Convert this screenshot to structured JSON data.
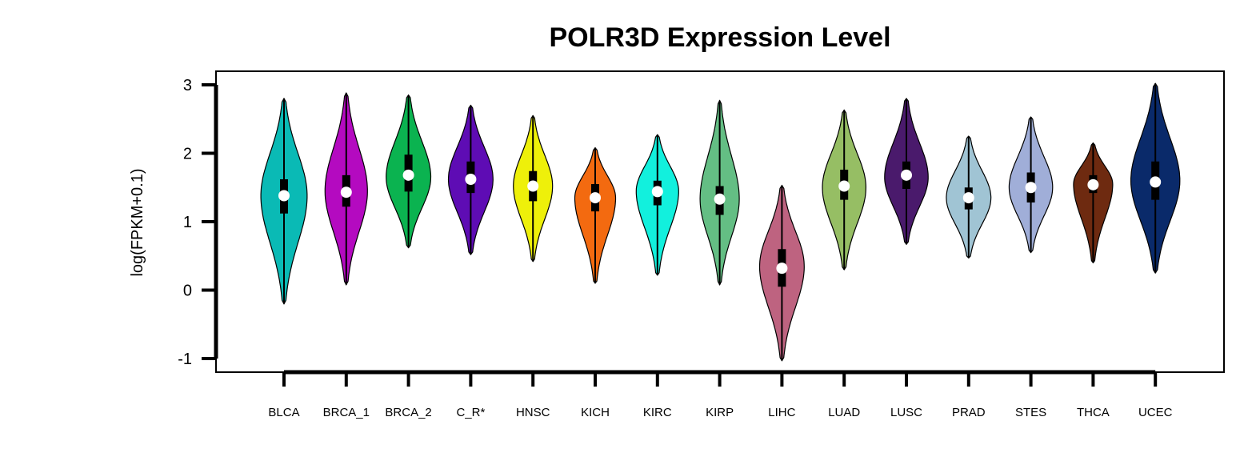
{
  "chart_data": {
    "type": "violin",
    "title": "POLR3D Expression Level",
    "xlabel": "",
    "ylabel": "log(FPKM+0.1)",
    "ylim": [
      -1,
      3
    ],
    "yticks": [
      "-1",
      "0",
      "1",
      "2",
      "3"
    ],
    "grid": false,
    "legend": "none",
    "categories": [
      "BLCA",
      "BRCA_1",
      "BRCA_2",
      "C_R*",
      "HNSC",
      "KICH",
      "KIRC",
      "KIRP",
      "LIHC",
      "LUAD",
      "LUSC",
      "PRAD",
      "STES",
      "THCA",
      "UCEC"
    ],
    "colors": [
      "#0ABAB5",
      "#B40AC0",
      "#0BB350",
      "#5E0CB4",
      "#EEF00A",
      "#F36A10",
      "#12F0DD",
      "#64BE84",
      "#BE6380",
      "#96BE64",
      "#4A1A6C",
      "#A0C4D4",
      "#A0AED8",
      "#6E2A10",
      "#0A2A6A"
    ],
    "violins": [
      {
        "min": -0.2,
        "max": 2.8,
        "median": 1.38,
        "q1": 1.12,
        "q3": 1.62,
        "peak": 1.38,
        "width": 0.85
      },
      {
        "min": 0.08,
        "max": 2.88,
        "median": 1.43,
        "q1": 1.22,
        "q3": 1.68,
        "peak": 1.45,
        "width": 0.78
      },
      {
        "min": 0.62,
        "max": 2.85,
        "median": 1.68,
        "q1": 1.44,
        "q3": 1.98,
        "peak": 1.65,
        "width": 0.82
      },
      {
        "min": 0.52,
        "max": 2.7,
        "median": 1.62,
        "q1": 1.42,
        "q3": 1.88,
        "peak": 1.62,
        "width": 0.82
      },
      {
        "min": 0.42,
        "max": 2.55,
        "median": 1.52,
        "q1": 1.3,
        "q3": 1.74,
        "peak": 1.52,
        "width": 0.72
      },
      {
        "min": 0.1,
        "max": 2.08,
        "median": 1.35,
        "q1": 1.15,
        "q3": 1.55,
        "peak": 1.35,
        "width": 0.75
      },
      {
        "min": 0.22,
        "max": 2.27,
        "median": 1.44,
        "q1": 1.24,
        "q3": 1.6,
        "peak": 1.45,
        "width": 0.78
      },
      {
        "min": 0.08,
        "max": 2.77,
        "median": 1.33,
        "q1": 1.1,
        "q3": 1.52,
        "peak": 1.33,
        "width": 0.72
      },
      {
        "min": -1.03,
        "max": 1.53,
        "median": 0.32,
        "q1": 0.05,
        "q3": 0.6,
        "peak": 0.35,
        "width": 0.82
      },
      {
        "min": 0.3,
        "max": 2.63,
        "median": 1.52,
        "q1": 1.32,
        "q3": 1.76,
        "peak": 1.5,
        "width": 0.8
      },
      {
        "min": 0.67,
        "max": 2.8,
        "median": 1.68,
        "q1": 1.48,
        "q3": 1.88,
        "peak": 1.65,
        "width": 0.8
      },
      {
        "min": 0.47,
        "max": 2.25,
        "median": 1.35,
        "q1": 1.18,
        "q3": 1.5,
        "peak": 1.35,
        "width": 0.82
      },
      {
        "min": 0.55,
        "max": 2.53,
        "median": 1.5,
        "q1": 1.28,
        "q3": 1.72,
        "peak": 1.5,
        "width": 0.8
      },
      {
        "min": 0.4,
        "max": 2.15,
        "median": 1.54,
        "q1": 1.42,
        "q3": 1.68,
        "peak": 1.55,
        "width": 0.72
      },
      {
        "min": 0.25,
        "max": 3.02,
        "median": 1.58,
        "q1": 1.32,
        "q3": 1.88,
        "peak": 1.6,
        "width": 0.9
      }
    ]
  }
}
